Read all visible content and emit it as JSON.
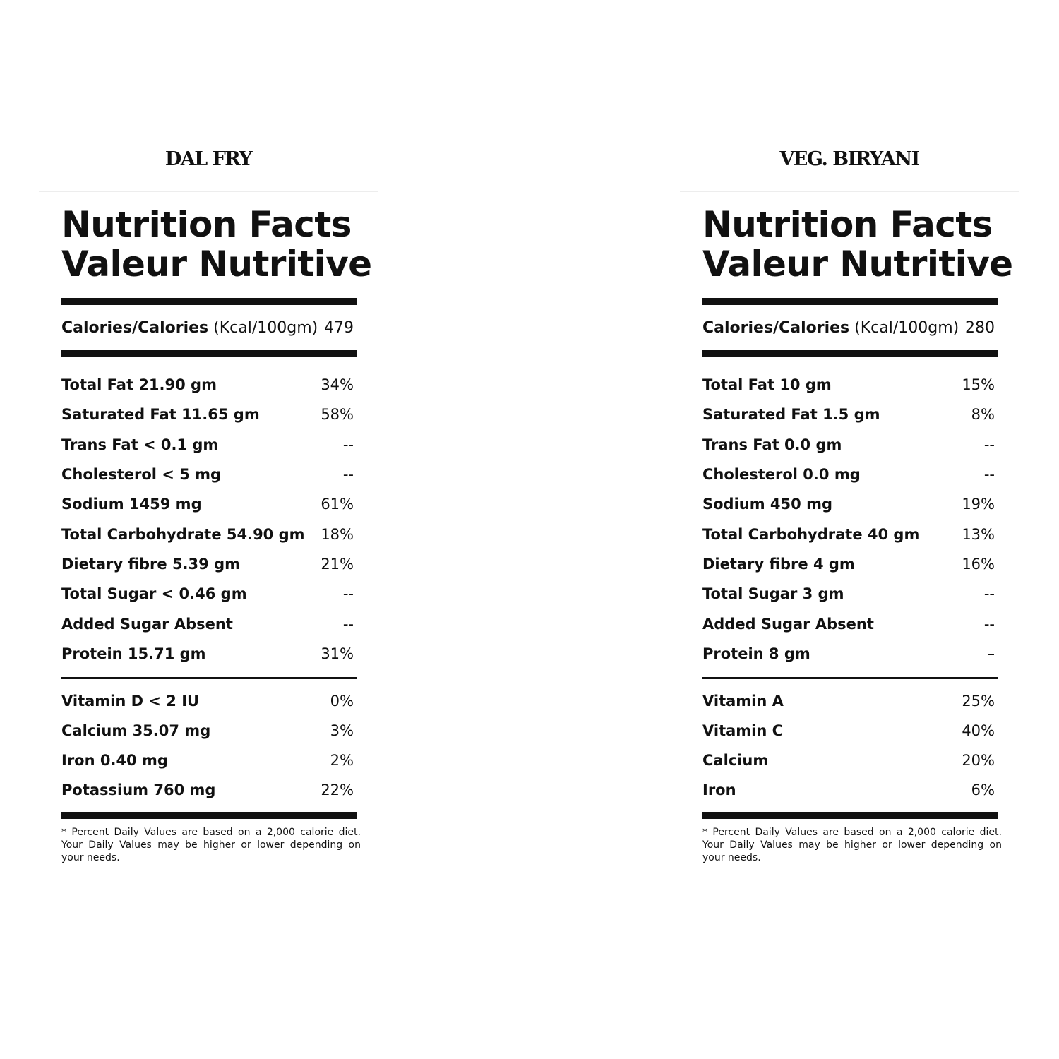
{
  "left": {
    "product": "DAL FRY",
    "heading_en": "Nutrition Facts",
    "heading_fr": "Valeur Nutritive",
    "calories_label": "Calories/Calories",
    "calories_unit": "(Kcal/100gm)",
    "calories_value": "479",
    "nutrients": [
      {
        "name": "Total Fat 21.90 gm",
        "value": "34%"
      },
      {
        "name": "Saturated Fat 11.65 gm",
        "value": "58%"
      },
      {
        "name": "Trans Fat < 0.1 gm",
        "value": "--"
      },
      {
        "name": "Cholesterol < 5 mg",
        "value": "--"
      },
      {
        "name": "Sodium 1459 mg",
        "value": "61%"
      },
      {
        "name": "Total Carbohydrate 54.90 gm",
        "value": "18%"
      },
      {
        "name": "Dietary fibre 5.39 gm",
        "value": "21%"
      },
      {
        "name": "Total Sugar < 0.46 gm",
        "value": "--"
      },
      {
        "name": "Added Sugar Absent",
        "value": "--"
      },
      {
        "name": "Protein 15.71 gm",
        "value": "31%"
      }
    ],
    "vitamins": [
      {
        "name": "Vitamin D < 2 IU",
        "value": "0%"
      },
      {
        "name": "Calcium 35.07 mg",
        "value": "3%"
      },
      {
        "name": "Iron 0.40 mg",
        "value": "2%"
      },
      {
        "name": "Potassium 760 mg",
        "value": "22%"
      }
    ],
    "footnote": "* Percent Daily Values are based on a 2,000 calorie diet. Your Daily Values may be higher or lower depending on your needs."
  },
  "right": {
    "product": "VEG. BIRYANI",
    "heading_en": "Nutrition Facts",
    "heading_fr": "Valeur Nutritive",
    "calories_label": "Calories/Calories",
    "calories_unit": "(Kcal/100gm)",
    "calories_value": "280",
    "nutrients": [
      {
        "name": "Total Fat 10 gm",
        "value": "15%"
      },
      {
        "name": "Saturated Fat 1.5 gm",
        "value": "8%"
      },
      {
        "name": "Trans Fat 0.0 gm",
        "value": "--"
      },
      {
        "name": "Cholesterol 0.0 mg",
        "value": "--"
      },
      {
        "name": "Sodium 450 mg",
        "value": "19%"
      },
      {
        "name": "Total Carbohydrate 40 gm",
        "value": "13%"
      },
      {
        "name": "Dietary fibre 4 gm",
        "value": "16%"
      },
      {
        "name": "Total Sugar 3 gm",
        "value": "--"
      },
      {
        "name": "Added Sugar Absent",
        "value": "--"
      },
      {
        "name": "Protein 8 gm",
        "value": "–"
      }
    ],
    "vitamins": [
      {
        "name": "Vitamin A",
        "value": "25%"
      },
      {
        "name": "Vitamin C",
        "value": "40%"
      },
      {
        "name": "Calcium",
        "value": "20%"
      },
      {
        "name": "Iron",
        "value": "6%"
      }
    ],
    "footnote": "* Percent Daily Values are based on a 2,000 calorie diet. Your Daily Values may be higher or lower depending on your needs."
  }
}
